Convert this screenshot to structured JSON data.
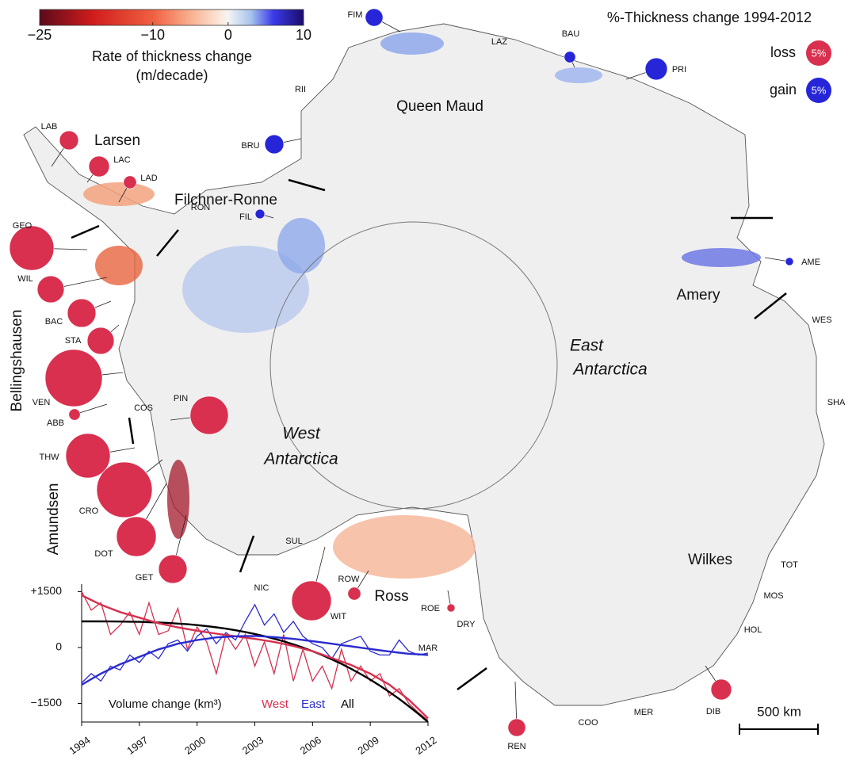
{
  "colorbar": {
    "label": [
      "Rate of thickness change",
      "(m/decade)"
    ],
    "clim": [
      -25,
      10
    ],
    "ticks": [
      {
        "value": -25,
        "label": "−25"
      },
      {
        "value": -10,
        "label": "−10"
      },
      0,
      10
    ],
    "stops": [
      {
        "value": -25,
        "color": "#5b0a1b"
      },
      {
        "value": -18,
        "color": "#d01c1c"
      },
      {
        "value": -10,
        "color": "#f06040"
      },
      {
        "value": -5,
        "color": "#f8b090"
      },
      {
        "value": -1,
        "color": "#fbe9dc"
      },
      {
        "value": 0,
        "color": "#f4f4f4"
      },
      {
        "value": 3,
        "color": "#a8c4ee"
      },
      {
        "value": 6,
        "color": "#3a3ae8"
      },
      {
        "value": 10,
        "color": "#1c0b6b"
      }
    ]
  },
  "legend": {
    "title": "%-Thickness change 1994-2012",
    "items": [
      {
        "label": "loss",
        "value": 5,
        "value_label": "5%",
        "color": "#d9304f"
      },
      {
        "label": "gain",
        "value": 5,
        "value_label": "5%",
        "color": "#2626d8"
      }
    ]
  },
  "map": {
    "ice_shelves": [
      {
        "name": "LAB",
        "change": -2.8
      },
      {
        "name": "LAC",
        "change": -3.3
      },
      {
        "name": "LAD",
        "change": -1.3
      },
      {
        "name": "GEO",
        "change": -15.3
      },
      {
        "name": "WIL",
        "change": -5.6
      },
      {
        "name": "BAC",
        "change": -6.3
      },
      {
        "name": "STA",
        "change": -5.6
      },
      {
        "name": "VEN",
        "change": -25.3
      },
      {
        "name": "ABB",
        "change": -1.0
      },
      {
        "name": "PIN",
        "change": -11.3
      },
      {
        "name": "THW",
        "change": -15.3
      },
      {
        "name": "CRO",
        "change": -23.9
      },
      {
        "name": "DOT",
        "change": -12.2
      },
      {
        "name": "GET",
        "change": -6.3
      },
      {
        "name": "WIT",
        "change": -12.2
      },
      {
        "name": "ROW",
        "change": -1.3
      },
      {
        "name": "ROE",
        "change": -0.5
      },
      {
        "name": "REN",
        "change": -2.4
      },
      {
        "name": "DIB",
        "change": -3.3
      },
      {
        "name": "FIM",
        "change": 2.4
      },
      {
        "name": "BAU",
        "change": 1.0
      },
      {
        "name": "PRI",
        "change": 3.8
      },
      {
        "name": "BRU",
        "change": 2.8
      },
      {
        "name": "FIL",
        "change": 0.7
      },
      {
        "name": "AME",
        "change": 0.5
      }
    ],
    "other_shelves": [
      "LAZ",
      "RII",
      "RON",
      "COS",
      "SUL",
      "NIC",
      "DRY",
      "MAR",
      "COO",
      "MER",
      "HOL",
      "MOS",
      "TOT",
      "SHA",
      "WES"
    ],
    "regions": [
      "Larsen",
      "Filchner-Ronne",
      "Queen Maud",
      "Amery",
      "Wilkes",
      "Ross",
      "Bellingshausen",
      "Amundsen"
    ],
    "areas": [
      [
        "West",
        "Antarctica"
      ],
      [
        "East",
        "Antarctica"
      ]
    ],
    "scale_bar": "500 km"
  },
  "chart_data": {
    "type": "line",
    "title": "Volume change (km³)",
    "x": [
      1994,
      1994.5,
      1995,
      1995.5,
      1996,
      1996.5,
      1997,
      1997.5,
      1998,
      1998.5,
      1999,
      1999.5,
      2000,
      2000.5,
      2001,
      2001.5,
      2002,
      2002.5,
      2003,
      2003.5,
      2004,
      2004.5,
      2005,
      2005.5,
      2006,
      2006.5,
      2007,
      2007.5,
      2008,
      2008.5,
      2009,
      2009.5,
      2010,
      2010.5,
      2011,
      2011.5,
      2012
    ],
    "xlim": [
      1994,
      2012
    ],
    "xticks": [
      1994,
      1997,
      2000,
      2003,
      2006,
      2009,
      2012
    ],
    "ylim": [
      -2000,
      1700
    ],
    "yticks": [
      {
        "value": 1500,
        "label": "+1500"
      },
      0,
      {
        "value": -1500,
        "label": "−1500"
      }
    ],
    "series": [
      {
        "name": "West",
        "color": "#d6304f",
        "values": [
          1500,
          1000,
          1200,
          350,
          600,
          950,
          350,
          1200,
          350,
          450,
          1050,
          -50,
          550,
          150,
          -700,
          350,
          -50,
          350,
          -500,
          150,
          -700,
          350,
          -900,
          -50,
          -900,
          -500,
          -1100,
          -50,
          -900,
          -500,
          -900,
          -700,
          -1300,
          -1100,
          -1500,
          -1750,
          -1950
        ]
      },
      {
        "name": "East",
        "color": "#2b2bd0",
        "values": [
          -950,
          -700,
          -900,
          -500,
          -600,
          -200,
          -400,
          -100,
          -300,
          100,
          200,
          -100,
          300,
          500,
          100,
          400,
          200,
          700,
          1150,
          600,
          900,
          400,
          700,
          300,
          100,
          0,
          -300,
          100,
          200,
          300,
          -100,
          -200,
          -200,
          200,
          -100,
          -200,
          -150
        ]
      },
      {
        "name": "All",
        "color": "#000000",
        "values": [
          700,
          700,
          700,
          698,
          696,
          693,
          687,
          680,
          670,
          658,
          642,
          623,
          600,
          573,
          541,
          505,
          463,
          416,
          362,
          303,
          237,
          164,
          84,
          -4,
          -100,
          -204,
          -317,
          -439,
          -570,
          -712,
          -863,
          -1024,
          -1196,
          -1380,
          -1575,
          -1781,
          -2000
        ]
      },
      {
        "color": "#d6304f",
        "values": [
          1400,
          1275,
          1150,
          1050,
          950,
          875,
          800,
          725,
          650,
          595,
          540,
          495,
          450,
          410,
          370,
          335,
          300,
          265,
          230,
          190,
          150,
          95,
          40,
          -30,
          -100,
          -190,
          -280,
          -375,
          -470,
          -585,
          -700,
          -850,
          -1000,
          -1200,
          -1400,
          -1650,
          -1900
        ]
      },
      {
        "color": "#2b2bd0",
        "values": [
          -1000,
          -850,
          -700,
          -575,
          -450,
          -350,
          -250,
          -150,
          -50,
          25,
          100,
          150,
          200,
          235,
          270,
          285,
          300,
          305,
          310,
          295,
          280,
          255,
          230,
          200,
          170,
          135,
          100,
          65,
          30,
          -5,
          -40,
          -75,
          -110,
          -140,
          -170,
          -185,
          -200
        ]
      }
    ]
  }
}
